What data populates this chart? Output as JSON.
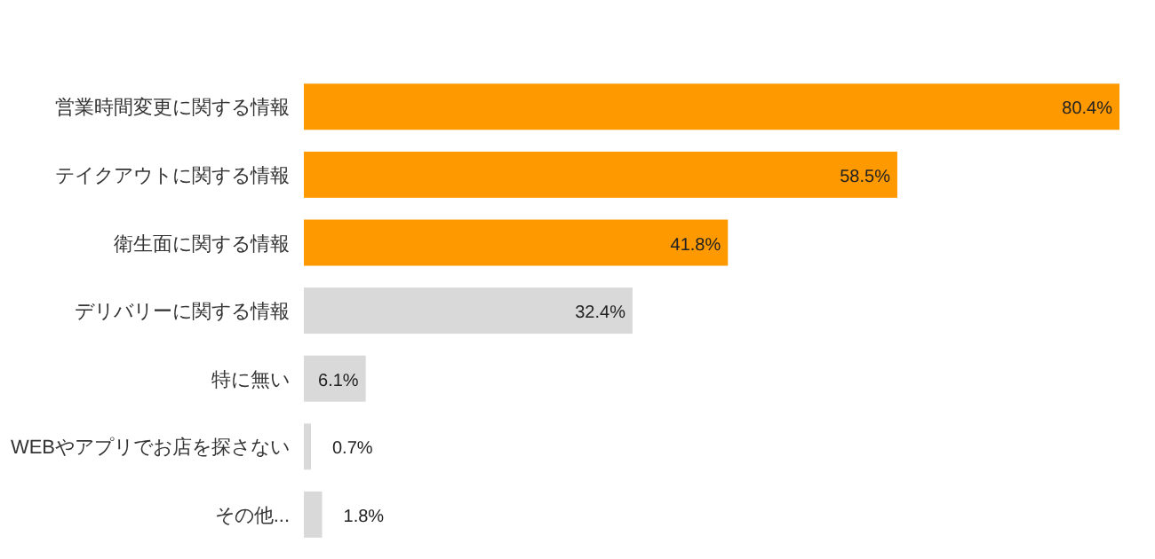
{
  "chart_data": {
    "type": "bar",
    "orientation": "horizontal",
    "categories": [
      "営業時間変更に関する情報",
      "テイクアウトに関する情報",
      "衛生面に関する情報",
      "デリバリーに関する情報",
      "特に無い",
      "WEBやアプリでお店を探さない",
      "その他..."
    ],
    "values": [
      80.4,
      58.5,
      41.8,
      32.4,
      6.1,
      0.7,
      1.8
    ],
    "colors": [
      "#ff9900",
      "#ff9900",
      "#ff9900",
      "#d9d9d9",
      "#d9d9d9",
      "#d9d9d9",
      "#d9d9d9"
    ],
    "value_labels": [
      "80.4%",
      "58.5%",
      "41.8%",
      "32.4%",
      "6.1%",
      "0.7%",
      "1.8%"
    ]
  }
}
